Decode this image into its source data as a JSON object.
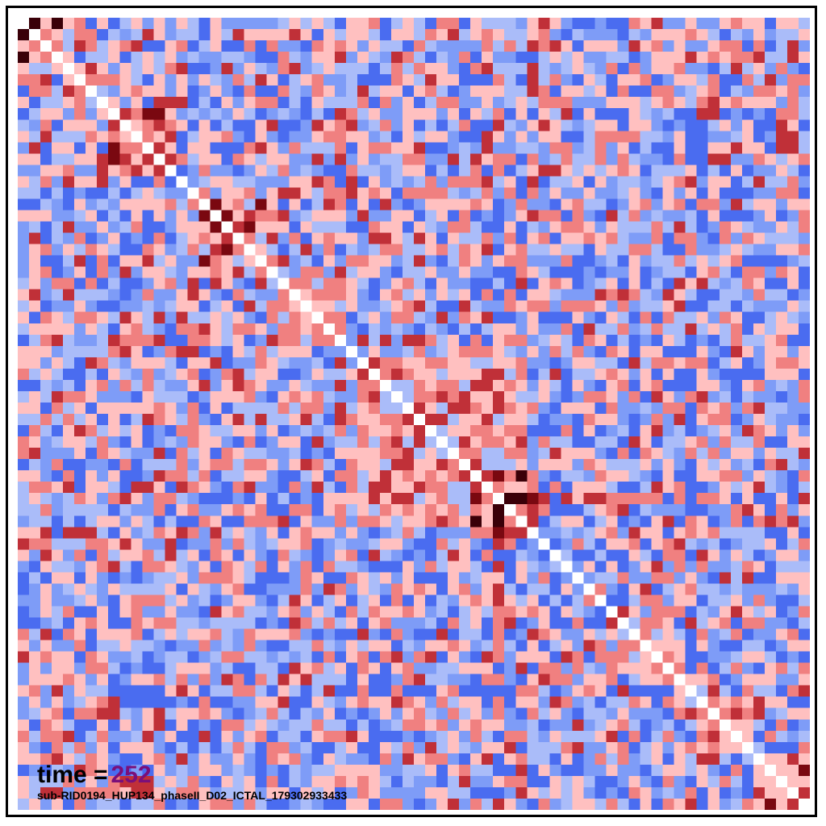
{
  "annotation": {
    "time_label": "time =",
    "time_value": "252",
    "file_label": "sub-RID0194_HUP134_phaseII_D02_ICTAL_179302933433"
  },
  "chart_data": {
    "type": "heatmap",
    "title": "",
    "xlabel": "",
    "ylabel": "",
    "n": 70,
    "seed": 252,
    "colormap": {
      "low": "#3b4cc0",
      "mid": "#ffffff",
      "high": "#3a0008",
      "stops": [
        "#4a6cf0",
        "#7e9cf7",
        "#aabcf9",
        "#ffc0c0",
        "#f08080",
        "#c03038",
        "#7a0810",
        "#3a0008"
      ]
    },
    "diagonal_value": "white",
    "blocks": [
      {
        "start": 0,
        "end": 3,
        "strength": 0.9
      },
      {
        "start": 4,
        "end": 7,
        "strength": 0.7
      },
      {
        "start": 8,
        "end": 13,
        "strength": 0.75
      },
      {
        "start": 16,
        "end": 22,
        "strength": 0.7
      },
      {
        "start": 23,
        "end": 28,
        "strength": 0.55
      },
      {
        "start": 30,
        "end": 44,
        "strength": 0.6
      },
      {
        "start": 40,
        "end": 45,
        "strength": 0.85
      },
      {
        "start": 53,
        "end": 57,
        "strength": 0.6
      },
      {
        "start": 60,
        "end": 63,
        "strength": 0.6
      },
      {
        "start": 65,
        "end": 69,
        "strength": 0.7
      }
    ]
  }
}
